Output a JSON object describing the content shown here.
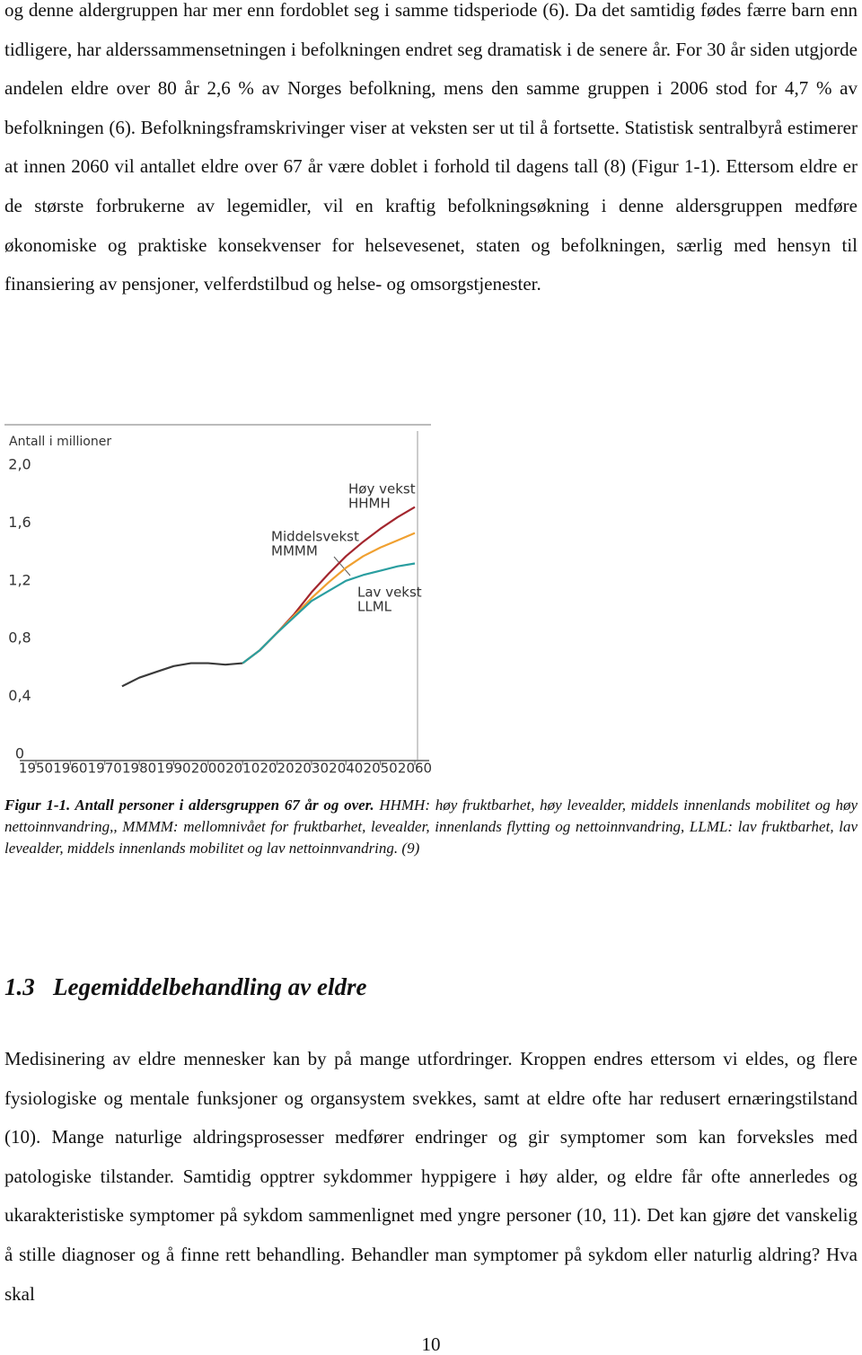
{
  "paragraphs": [
    "og denne aldergruppen har mer enn fordoblet seg i samme tidsperiode (6). Da det samtidig fødes færre barn enn tidligere, har alderssammensetningen i befolkningen endret seg dramatisk i de senere år. For 30 år siden utgjorde andelen eldre over 80 år 2,6 % av Norges befolkning, mens den samme gruppen i 2006 stod for 4,7 % av befolkningen (6). Befolkningsframskrivinger viser at veksten ser ut til å fortsette. Statistisk sentralbyrå estimerer at innen 2060 vil antallet eldre over 67 år være doblet i forhold til dagens tall (8) (Figur 1-1). Ettersom eldre er de største forbrukerne av legemidler, vil en kraftig befolkningsøkning i denne aldersgruppen medføre økonomiske og praktiske konsekvenser for helsevesenet, staten og befolkningen, særlig med hensyn til finansiering av pensjoner, velferdstilbud og helse- og omsorgstjenester.",
    "Medisinering av eldre mennesker kan by på mange utfordringer. Kroppen endres ettersom vi eldes, og flere fysiologiske og mentale funksjoner og organsystem svekkes, samt at eldre ofte har redusert ernæringstilstand (10). Mange naturlige aldringsprosesser medfører endringer og gir symptomer som kan forveksles med patologiske tilstander. Samtidig opptrer sykdommer hyppigere i høy alder, og eldre får ofte annerledes og ukarakteristiske symptomer på sykdom sammenlignet med yngre personer (10, 11). Det kan gjøre det vanskelig å stille diagnoser og å finne rett behandling. Behandler man symptomer på sykdom eller naturlig aldring? Hva skal"
  ],
  "chart_data": {
    "type": "line",
    "y_label": "Antall i millioner",
    "x": [
      1975,
      1980,
      1985,
      1990,
      1995,
      2000,
      2005,
      2010,
      2015,
      2020,
      2025,
      2030,
      2035,
      2040,
      2045,
      2050,
      2055,
      2060
    ],
    "xlim": [
      1950,
      2060
    ],
    "xticks": [
      1950,
      1960,
      1970,
      1980,
      1990,
      2000,
      2010,
      2020,
      2030,
      2040,
      2050,
      2060
    ],
    "ylim": [
      0,
      2
    ],
    "yticks": [
      {
        "value": 0,
        "label": "0"
      },
      {
        "value": 0.4,
        "label": "0,4"
      },
      {
        "value": 0.8,
        "label": "0,8"
      },
      {
        "value": 1.2,
        "label": "1,2"
      },
      {
        "value": 1.6,
        "label": "1,6"
      },
      {
        "value": 2,
        "label": "2,0"
      }
    ],
    "series": [
      {
        "color": "#3a3a3a",
        "values": [
          0.47,
          0.53,
          0.57,
          0.61,
          0.63,
          0.63,
          0.62,
          0.63,
          null,
          null,
          null,
          null,
          null,
          null,
          null,
          null,
          null,
          null
        ]
      },
      {
        "name": "Høy vekst",
        "code": "HHMH",
        "color": "#a3262e",
        "values": [
          null,
          null,
          null,
          null,
          null,
          null,
          null,
          0.63,
          0.72,
          0.84,
          0.97,
          1.12,
          1.25,
          1.37,
          1.47,
          1.56,
          1.64,
          1.71
        ]
      },
      {
        "name": "Middelsvekst",
        "code": "MMMM",
        "color": "#f0a030",
        "values": [
          null,
          null,
          null,
          null,
          null,
          null,
          null,
          0.63,
          0.72,
          0.84,
          0.96,
          1.08,
          1.19,
          1.29,
          1.37,
          1.43,
          1.48,
          1.53
        ]
      },
      {
        "name": "Lav vekst",
        "code": "LLML",
        "color": "#2a9ea0",
        "values": [
          null,
          null,
          null,
          null,
          null,
          null,
          null,
          0.63,
          0.72,
          0.84,
          0.95,
          1.06,
          1.13,
          1.2,
          1.24,
          1.27,
          1.3,
          1.32
        ]
      }
    ]
  },
  "caption": {
    "label": "Figur 1-1. Antall personer i aldersgruppen 67 år og over.",
    "text": "HHMH: høy fruktbarhet, høy levealder, middels innenlands mobilitet og høy nettoinnvandring,, MMMM: mellomnivået for fruktbarhet, levealder, innenlands flytting og nettoinnvandring, LLML: lav fruktbarhet, lav levealder, middels innenlands mobilitet og lav nettoinnvandring. (9)"
  },
  "heading": {
    "number": "1.3",
    "title": "Legemiddelbehandling av eldre"
  },
  "page_number": "10"
}
